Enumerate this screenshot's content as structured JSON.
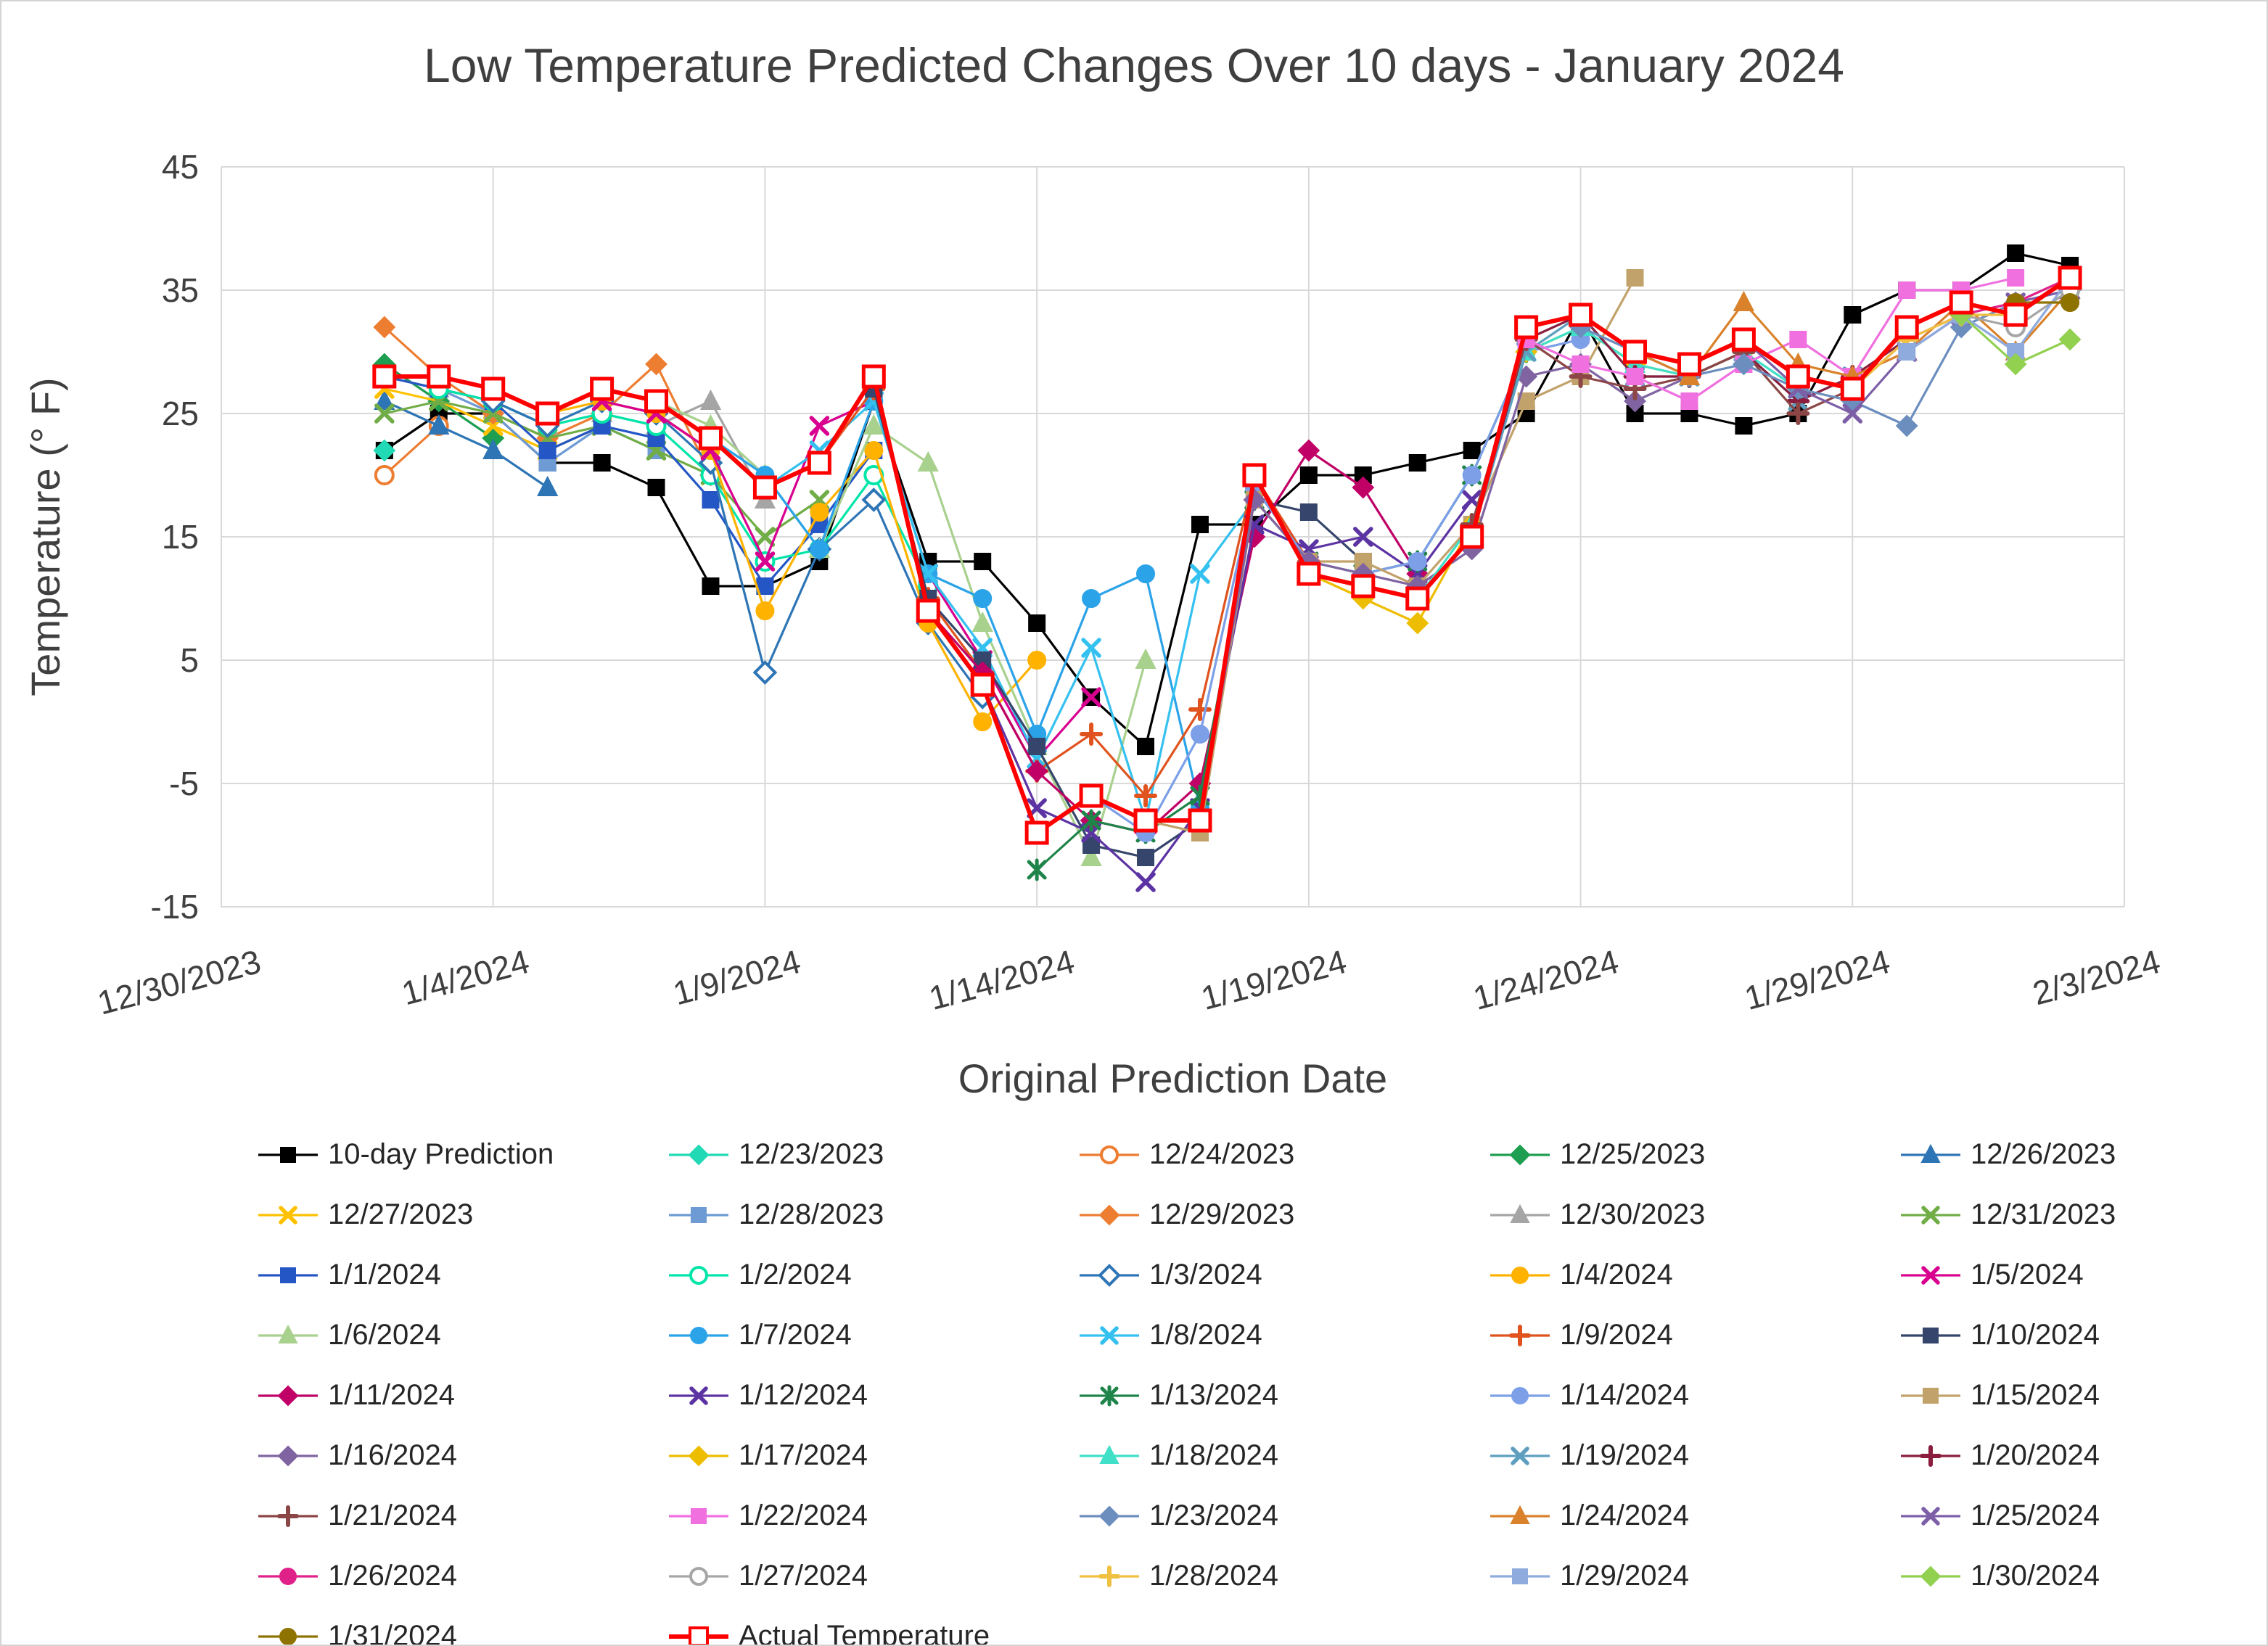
{
  "chart_data": {
    "type": "line",
    "title": "Low Temperature Predicted Changes Over 10 days - January 2024",
    "xlabel": "Original Prediction Date",
    "ylabel": "Temperature (° F)",
    "x_ticks": [
      "12/30/2023",
      "1/4/2024",
      "1/9/2024",
      "1/14/2024",
      "1/19/2024",
      "1/24/2024",
      "1/29/2024",
      "2/3/2024"
    ],
    "x_tick_positions": [
      0,
      5,
      10,
      15,
      20,
      25,
      30,
      35
    ],
    "x_range": [
      0,
      35
    ],
    "x_unit_note": "x = days after 12/30/2023",
    "y_ticks": [
      45,
      35,
      25,
      15,
      5,
      -5,
      -15
    ],
    "y_range": [
      -15,
      45
    ],
    "grid": true,
    "grid_color": "#d9d9d9",
    "text_color": "#3f3f3f",
    "legend_position": "bottom",
    "series": [
      {
        "name": "10-day Prediction",
        "color": "#000000",
        "marker": "square",
        "fill": "filled",
        "start": 3,
        "values": [
          22,
          25,
          25,
          21,
          21,
          19,
          11,
          11,
          13,
          26,
          13,
          13,
          8,
          2,
          -2,
          16,
          16,
          20,
          20,
          21,
          22,
          25,
          33,
          25,
          25,
          24,
          25,
          33,
          35,
          35,
          38,
          37
        ]
      },
      {
        "name": "12/23/2023",
        "color": "#21d9b5",
        "marker": "diamond",
        "fill": "filled",
        "start": 3,
        "values": [
          22
        ]
      },
      {
        "name": "12/24/2023",
        "color": "#ed7d31",
        "marker": "circle",
        "fill": "open",
        "start": 3,
        "values": [
          20,
          24
        ]
      },
      {
        "name": "12/25/2023",
        "color": "#1e9e50",
        "marker": "diamond",
        "fill": "filled",
        "start": 3,
        "values": [
          29,
          26,
          23
        ]
      },
      {
        "name": "12/26/2023",
        "color": "#2e75b6",
        "marker": "triangle",
        "fill": "filled",
        "start": 3,
        "values": [
          26,
          24,
          22,
          19
        ]
      },
      {
        "name": "12/27/2023",
        "color": "#ffc000",
        "marker": "x",
        "fill": "filled",
        "start": 3,
        "values": [
          27,
          26,
          24,
          22,
          24
        ]
      },
      {
        "name": "12/28/2023",
        "color": "#6e9bd4",
        "marker": "square",
        "fill": "filled",
        "start": 3,
        "values": [
          28,
          27,
          25,
          21,
          24,
          22
        ]
      },
      {
        "name": "12/29/2023",
        "color": "#ed7d31",
        "marker": "diamond",
        "fill": "filled",
        "start": 3,
        "values": [
          32,
          28,
          25,
          23,
          25,
          29,
          20
        ]
      },
      {
        "name": "12/30/2023",
        "color": "#a5a5a5",
        "marker": "triangle",
        "fill": "filled",
        "start": 3,
        "values": [
          28,
          27,
          26,
          24,
          25,
          24,
          26,
          18
        ]
      },
      {
        "name": "12/31/2023",
        "color": "#70ad47",
        "marker": "x",
        "fill": "filled",
        "start": 3,
        "values": [
          25,
          26,
          25,
          23,
          24,
          22,
          20,
          15,
          18
        ]
      },
      {
        "name": "1/1/2024",
        "color": "#2457c5",
        "marker": "square",
        "fill": "filled",
        "start": 3,
        "values": [
          28,
          27,
          26,
          22,
          24,
          23,
          18,
          11,
          16,
          22
        ]
      },
      {
        "name": "1/2/2024",
        "color": "#00e5a8",
        "marker": "circle",
        "fill": "open",
        "start": 4,
        "values": [
          27,
          26,
          24,
          25,
          24,
          20,
          13,
          14,
          20,
          11
        ]
      },
      {
        "name": "1/3/2024",
        "color": "#2e75b6",
        "marker": "diamond",
        "fill": "open",
        "start": 5,
        "values": [
          26,
          24,
          26,
          25,
          21,
          4,
          14,
          18,
          8,
          2
        ]
      },
      {
        "name": "1/4/2024",
        "color": "#ffb300",
        "marker": "circle",
        "fill": "filled",
        "start": 6,
        "values": [
          25,
          26,
          25,
          22,
          9,
          17,
          22,
          8,
          0,
          5
        ]
      },
      {
        "name": "1/5/2024",
        "color": "#d9008f",
        "marker": "x",
        "fill": "filled",
        "start": 7,
        "values": [
          26,
          25,
          22,
          13,
          24,
          26,
          12,
          5,
          -3,
          2
        ]
      },
      {
        "name": "1/6/2024",
        "color": "#a9d18e",
        "marker": "triangle",
        "fill": "filled",
        "start": 8,
        "values": [
          26,
          24,
          20,
          14,
          24,
          21,
          8,
          -2,
          -11,
          5
        ]
      },
      {
        "name": "1/7/2024",
        "color": "#2ba3e8",
        "marker": "circle",
        "fill": "filled",
        "start": 9,
        "values": [
          23,
          20,
          14,
          26,
          12,
          10,
          -1,
          10,
          12,
          -7
        ]
      },
      {
        "name": "1/8/2024",
        "color": "#35c1f0",
        "marker": "x",
        "fill": "filled",
        "start": 10,
        "values": [
          19,
          22,
          26,
          12,
          6,
          -3,
          6,
          -8,
          12,
          18
        ]
      },
      {
        "name": "1/9/2024",
        "color": "#e0531f",
        "marker": "plus",
        "fill": "filled",
        "start": 11,
        "values": [
          21,
          27,
          10,
          4,
          -4,
          -1,
          -6,
          1,
          20,
          13
        ]
      },
      {
        "name": "1/10/2024",
        "color": "#35456b",
        "marker": "square",
        "fill": "filled",
        "start": 12,
        "values": [
          27,
          10,
          5,
          -2,
          -10,
          -11,
          -8,
          18,
          17,
          13
        ]
      },
      {
        "name": "1/11/2024",
        "color": "#c00066",
        "marker": "diamond",
        "fill": "filled",
        "start": 13,
        "values": [
          9,
          4,
          -4,
          -8,
          -9,
          -5,
          15,
          22,
          19,
          12
        ]
      },
      {
        "name": "1/12/2024",
        "color": "#5c33a2",
        "marker": "x",
        "fill": "filled",
        "start": 14,
        "values": [
          3,
          -7,
          -9,
          -13,
          -7,
          16,
          14,
          15,
          12,
          18
        ]
      },
      {
        "name": "1/13/2024",
        "color": "#1e8449",
        "marker": "star",
        "fill": "filled",
        "start": 15,
        "values": [
          -12,
          -8,
          -9,
          -6,
          18,
          13,
          12,
          13,
          20,
          30
        ]
      },
      {
        "name": "1/14/2024",
        "color": "#7c9fe8",
        "marker": "circle",
        "fill": "filled",
        "start": 16,
        "values": [
          -6,
          -9,
          -1,
          19,
          13,
          12,
          13,
          20,
          30,
          31
        ]
      },
      {
        "name": "1/15/2024",
        "color": "#c2a26b",
        "marker": "square",
        "fill": "filled",
        "start": 17,
        "values": [
          -8,
          -9,
          18,
          13,
          13,
          11,
          16,
          26,
          28,
          36
        ]
      },
      {
        "name": "1/16/2024",
        "color": "#8064a2",
        "marker": "diamond",
        "fill": "filled",
        "start": 18,
        "values": [
          -8,
          18,
          13,
          12,
          11,
          14,
          28,
          29,
          26,
          28
        ]
      },
      {
        "name": "1/17/2024",
        "color": "#edbd00",
        "marker": "diamond",
        "fill": "filled",
        "start": 19,
        "values": [
          20,
          12,
          10,
          8,
          16,
          30,
          32,
          29,
          28,
          30
        ]
      },
      {
        "name": "1/18/2024",
        "color": "#40e0c8",
        "marker": "triangle",
        "fill": "filled",
        "start": 20,
        "values": [
          12,
          11,
          10,
          16,
          30,
          32,
          29,
          28,
          30,
          27
        ]
      },
      {
        "name": "1/19/2024",
        "color": "#5e9fc0",
        "marker": "x",
        "fill": "filled",
        "start": 21,
        "values": [
          11,
          10,
          15,
          30,
          33,
          28,
          28,
          30,
          26,
          28
        ]
      },
      {
        "name": "1/20/2024",
        "color": "#8b1e3f",
        "marker": "plus",
        "fill": "filled",
        "start": 22,
        "values": [
          10,
          15,
          31,
          33,
          28,
          28,
          30,
          26,
          28,
          31
        ]
      },
      {
        "name": "1/21/2024",
        "color": "#8c4646",
        "marker": "plus",
        "fill": "filled",
        "start": 23,
        "values": [
          16,
          31,
          28,
          27,
          28,
          30,
          25,
          27,
          32,
          34
        ]
      },
      {
        "name": "1/22/2024",
        "color": "#f070e0",
        "marker": "square",
        "fill": "filled",
        "start": 24,
        "values": [
          31,
          29,
          28,
          26,
          29,
          31,
          28,
          35,
          35,
          36
        ]
      },
      {
        "name": "1/23/2024",
        "color": "#6c8ebf",
        "marker": "diamond",
        "fill": "filled",
        "start": 25,
        "values": [
          32,
          30,
          28,
          29,
          27,
          26,
          24,
          32,
          34,
          35
        ]
      },
      {
        "name": "1/24/2024",
        "color": "#d9822b",
        "marker": "triangle",
        "fill": "filled",
        "start": 26,
        "values": [
          30,
          28,
          34,
          29,
          28,
          30,
          34,
          30,
          35
        ]
      },
      {
        "name": "1/25/2024",
        "color": "#7d5fa8",
        "marker": "x",
        "fill": "filled",
        "start": 27,
        "values": [
          29,
          31,
          27,
          25,
          30,
          33,
          34,
          35
        ]
      },
      {
        "name": "1/26/2024",
        "color": "#e0218a",
        "marker": "circle",
        "fill": "filled",
        "start": 28,
        "values": [
          31,
          28,
          27,
          31,
          33,
          34,
          36
        ]
      },
      {
        "name": "1/27/2024",
        "color": "#a6a6a6",
        "marker": "circle",
        "fill": "open",
        "start": 29,
        "values": [
          28,
          27,
          31,
          33,
          32,
          35
        ]
      },
      {
        "name": "1/28/2024",
        "color": "#f0c040",
        "marker": "plus",
        "fill": "filled",
        "start": 30,
        "values": [
          27,
          31,
          33,
          33,
          36
        ]
      },
      {
        "name": "1/29/2024",
        "color": "#8faadc",
        "marker": "square",
        "fill": "filled",
        "start": 31,
        "values": [
          30,
          33,
          30,
          36
        ]
      },
      {
        "name": "1/30/2024",
        "color": "#92d050",
        "marker": "diamond",
        "fill": "filled",
        "start": 32,
        "values": [
          33,
          29,
          31
        ]
      },
      {
        "name": "1/31/2024",
        "color": "#8f7300",
        "marker": "circle",
        "fill": "filled",
        "start": 33,
        "values": [
          34,
          34
        ]
      },
      {
        "name": "Actual Temperature",
        "color": "#ff0000",
        "marker": "square",
        "fill": "open",
        "start": 3,
        "width": 6,
        "is_actual": true,
        "values": [
          28,
          28,
          27,
          25,
          27,
          26,
          23,
          19,
          21,
          28,
          9,
          3,
          -9,
          -6,
          -8,
          -8,
          20,
          12,
          11,
          10,
          15,
          32,
          33,
          30,
          29,
          31,
          28,
          27,
          32,
          34,
          33,
          36
        ]
      }
    ]
  }
}
